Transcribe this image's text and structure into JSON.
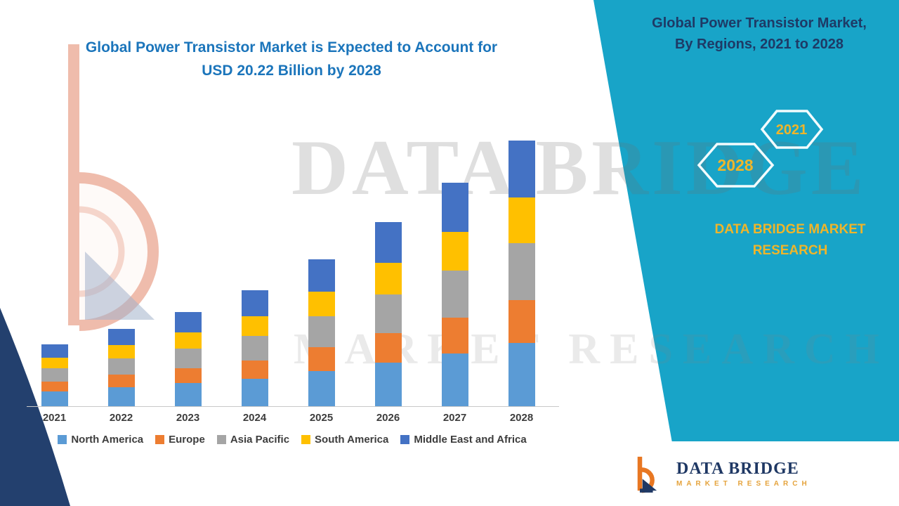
{
  "title": {
    "line1": "Global Power Transistor Market is Expected to Account for",
    "line2": "USD 20.22 Billion by 2028"
  },
  "right_panel": {
    "heading_line1": "Global Power Transistor Market,",
    "heading_line2": "By Regions, 2021 to 2028",
    "badge_2028": "2028",
    "badge_2021": "2021",
    "brand": "DATA BRIDGE MARKET RESEARCH"
  },
  "watermark": {
    "line1": "DATA BRIDGE",
    "line2": "MARKET RESEARCH"
  },
  "footer_logo": {
    "name": "DATA BRIDGE",
    "subtitle": "MARKET RESEARCH"
  },
  "colors": {
    "teal": "#18a4c8",
    "title_blue": "#1b75bb",
    "navy": "#1e3a66",
    "gold": "#efb52a"
  },
  "chart_data": {
    "type": "bar",
    "stacked": true,
    "title": "Global Power Transistor Market is Expected to Account for USD 20.22 Billion by 2028",
    "xlabel": "",
    "ylabel": "",
    "unit": "USD Billion",
    "ylim": [
      0,
      21
    ],
    "grid": false,
    "legend_position": "bottom",
    "categories": [
      "2021",
      "2022",
      "2023",
      "2024",
      "2025",
      "2026",
      "2027",
      "2028"
    ],
    "series": [
      {
        "name": "North America",
        "color": "#5B9BD5",
        "values": [
          1.15,
          1.45,
          1.75,
          2.1,
          2.7,
          3.3,
          4.0,
          4.8
        ]
      },
      {
        "name": "Europe",
        "color": "#ED7D31",
        "values": [
          0.75,
          0.95,
          1.15,
          1.4,
          1.8,
          2.25,
          2.75,
          3.3
        ]
      },
      {
        "name": "Asia Pacific",
        "color": "#A5A5A5",
        "values": [
          1.0,
          1.25,
          1.5,
          1.85,
          2.35,
          2.95,
          3.6,
          4.3
        ]
      },
      {
        "name": "South America",
        "color": "#FFC000",
        "values": [
          0.8,
          1.0,
          1.2,
          1.5,
          1.9,
          2.4,
          2.9,
          3.5
        ]
      },
      {
        "name": "Middle East and Africa",
        "color": "#4472C4",
        "values": [
          1.0,
          1.25,
          1.6,
          1.95,
          2.45,
          3.1,
          3.75,
          4.32
        ]
      }
    ],
    "totals": [
      4.7,
      5.9,
      7.2,
      8.8,
      11.2,
      14.0,
      17.0,
      20.22
    ]
  }
}
